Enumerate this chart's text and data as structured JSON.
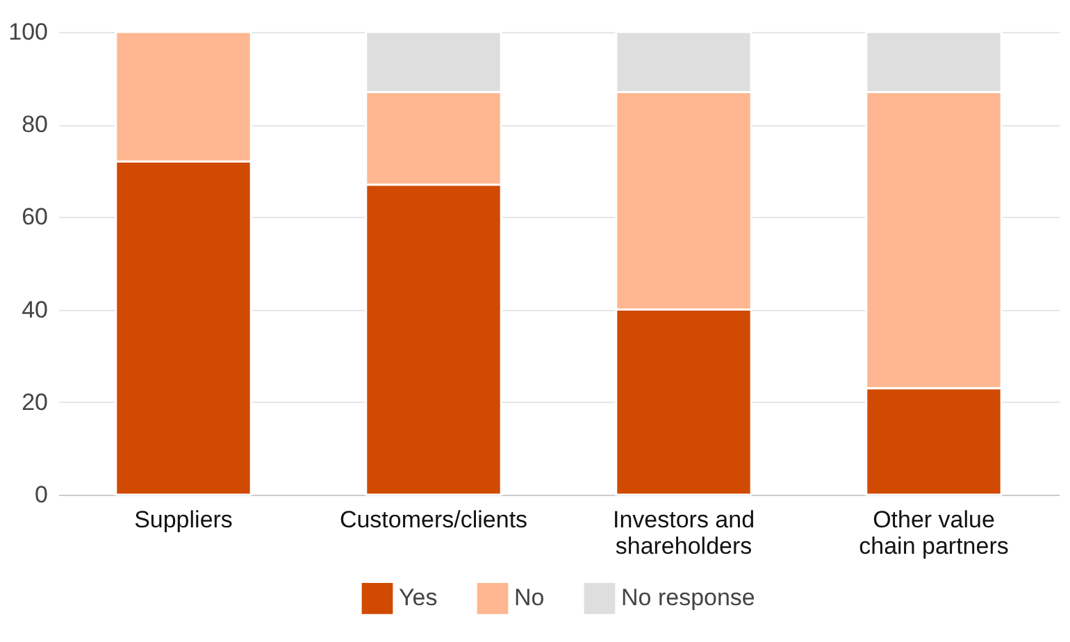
{
  "chart_data": {
    "type": "bar",
    "stacked": true,
    "categories": [
      "Suppliers",
      "Customers/clients",
      "Investors and shareholders",
      "Other value chain partners"
    ],
    "series": [
      {
        "name": "Yes",
        "color": "#d04a02",
        "values": [
          72,
          67,
          40,
          23
        ]
      },
      {
        "name": "No",
        "color": "#feb791",
        "values": [
          28,
          20,
          47,
          64
        ]
      },
      {
        "name": "No response",
        "color": "#dedede",
        "values": [
          null,
          13,
          13,
          13
        ]
      }
    ],
    "ylim": [
      0,
      100
    ],
    "yticks": [
      0,
      20,
      40,
      60,
      80,
      100
    ],
    "grid": "y",
    "legend": "bottom"
  }
}
